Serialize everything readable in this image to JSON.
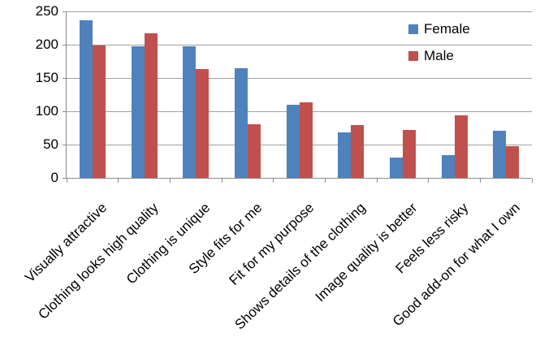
{
  "chart_data": {
    "type": "bar",
    "title": "",
    "xlabel": "",
    "ylabel": "",
    "categories": [
      "Visually attractive",
      "Clothing looks high quality",
      "Clothing is unique",
      "Style fits for me",
      "Fit for my purpose",
      "Shows details of the clothing",
      "Image quality is better",
      "Feels less risky",
      "Good add-on for what I own"
    ],
    "series": [
      {
        "name": "Female",
        "color": "#4F81BD",
        "values": [
          237,
          198,
          197,
          165,
          110,
          68,
          31,
          34,
          71
        ]
      },
      {
        "name": "Male",
        "color": "#C0504D",
        "values": [
          199,
          217,
          163,
          80,
          114,
          79,
          72,
          94,
          48
        ]
      }
    ],
    "ylim": [
      0,
      250
    ],
    "yticks": [
      0,
      50,
      100,
      150,
      200,
      250
    ],
    "grid": "horizontal",
    "legend_position": "top-right",
    "axis_color": "#8c8c8c",
    "gridline_color": "#a0a0a0",
    "text_color": "#000000"
  }
}
